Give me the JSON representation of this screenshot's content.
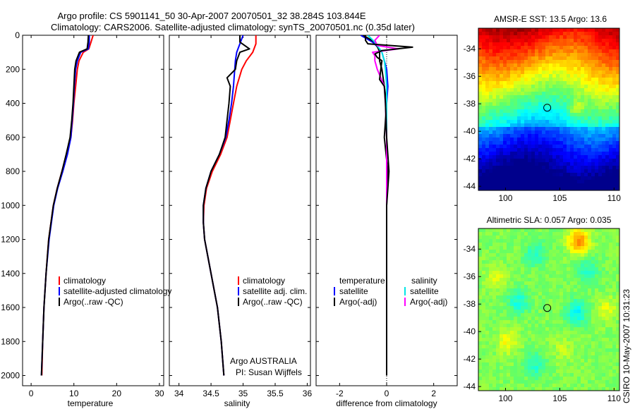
{
  "figure": {
    "title_line1": "Argo profile: CS 5901141_50 30-Apr-2007 20070501_32 38.284S 103.844E",
    "title_line2": "Climatology: CARS2006. Satellite-adjusted climatology: synTS_20070501.nc (0.35d later)",
    "side_text": "CSIRO 10-May-2007 10:31:23",
    "colors": {
      "climatology": "#ff0000",
      "satellite": "#0000ff",
      "argo": "#000000",
      "sal_satellite": "#00e5e5",
      "sal_argo": "#ff00ff"
    }
  },
  "chart_data": [
    {
      "type": "line",
      "xlabel": "temperature",
      "xlim": [
        -2,
        31
      ],
      "ylim": [
        2060,
        0
      ],
      "x_ticks": [
        0,
        10,
        20,
        30
      ],
      "y_ticks": [
        0,
        200,
        400,
        600,
        800,
        1000,
        1200,
        1400,
        1600,
        1800,
        2000
      ],
      "y_tick_labels": [
        "0",
        "200",
        "400",
        "600",
        "800",
        "1000",
        "1200",
        "1400",
        "1600",
        "1800",
        "2000"
      ],
      "legend": [
        "climatology",
        "satellite-adjusted climatology",
        "Argo(..raw -QC)"
      ],
      "series": [
        {
          "name": "climatology",
          "color": "#ff0000",
          "y": [
            0,
            40,
            80,
            100,
            150,
            200,
            300,
            400,
            500,
            600,
            700,
            800,
            900,
            1000,
            1200,
            1400,
            1600,
            1800,
            2000
          ],
          "x": [
            14.5,
            14.0,
            13.5,
            12.2,
            11.2,
            10.8,
            10.4,
            10.0,
            9.7,
            9.3,
            8.3,
            7.2,
            6.1,
            5.2,
            4.1,
            3.5,
            3.0,
            2.7,
            2.5
          ]
        },
        {
          "name": "satellite-adjusted climatology",
          "color": "#0000ff",
          "y": [
            0,
            40,
            80,
            100,
            150,
            200,
            300,
            400,
            500,
            600,
            700,
            800,
            900,
            1000,
            1200,
            1400,
            1600,
            1800,
            2000
          ],
          "x": [
            13.6,
            13.6,
            13.4,
            11.6,
            10.8,
            10.4,
            10.1,
            9.9,
            9.6,
            9.3,
            8.5,
            7.4,
            6.2,
            5.3,
            4.2,
            3.5,
            3.0,
            2.7,
            2.4
          ]
        },
        {
          "name": "Argo(..raw -QC)",
          "color": "#000000",
          "y": [
            0,
            40,
            80,
            100,
            150,
            200,
            300,
            400,
            500,
            600,
            700,
            800,
            900,
            1000,
            1200,
            1400,
            1600,
            1800,
            2000
          ],
          "x": [
            13.4,
            13.3,
            13.1,
            11.3,
            10.5,
            10.2,
            10.0,
            9.8,
            9.5,
            9.1,
            8.2,
            7.2,
            6.1,
            5.2,
            4.1,
            3.5,
            3.0,
            2.7,
            2.4
          ]
        }
      ]
    },
    {
      "type": "line",
      "xlabel": "salinity",
      "xlim": [
        33.85,
        36.05
      ],
      "ylim": [
        2060,
        0
      ],
      "x_ticks": [
        34,
        34.5,
        35,
        35.5,
        36
      ],
      "y_ticks": [
        0,
        200,
        400,
        600,
        800,
        1000,
        1200,
        1400,
        1600,
        1800,
        2000
      ],
      "legend": [
        "climatology",
        "satellite adj. clim.",
        "Argo(..raw -QC)"
      ],
      "annotation": [
        "Argo AUSTRALIA",
        "PI: Susan Wijffels"
      ],
      "series": [
        {
          "name": "climatology",
          "color": "#ff0000",
          "y": [
            0,
            50,
            100,
            150,
            200,
            300,
            400,
            500,
            600,
            700,
            800,
            900,
            1000,
            1100,
            1200,
            1400,
            1600,
            1800,
            2000
          ],
          "x": [
            35.2,
            35.2,
            35.15,
            35.05,
            34.98,
            34.9,
            34.85,
            34.8,
            34.75,
            34.65,
            34.52,
            34.43,
            34.39,
            34.38,
            34.4,
            34.5,
            34.6,
            34.66,
            34.7
          ]
        },
        {
          "name": "satellite adj. clim.",
          "color": "#0000ff",
          "y": [
            0,
            50,
            100,
            150,
            200,
            300,
            400,
            500,
            600,
            700,
            800,
            900,
            1000,
            1100,
            1200,
            1400,
            1600,
            1800,
            2000
          ],
          "x": [
            35.0,
            34.95,
            34.9,
            34.88,
            34.87,
            34.85,
            34.82,
            34.78,
            34.73,
            34.63,
            34.5,
            34.42,
            34.38,
            34.38,
            34.4,
            34.5,
            34.6,
            34.66,
            34.7
          ]
        },
        {
          "name": "Argo(..raw -QC)",
          "color": "#000000",
          "y": [
            0,
            40,
            80,
            100,
            150,
            200,
            250,
            300,
            400,
            500,
            600,
            700,
            800,
            900,
            1000,
            1100,
            1200,
            1400,
            1600,
            1800,
            2000
          ],
          "x": [
            34.95,
            34.95,
            35.1,
            34.95,
            34.9,
            34.88,
            34.75,
            34.8,
            34.78,
            34.75,
            34.72,
            34.63,
            34.5,
            34.42,
            34.38,
            34.38,
            34.4,
            34.5,
            34.6,
            34.66,
            34.7
          ]
        }
      ]
    },
    {
      "type": "line",
      "xlabel": "difference from climatology",
      "xlim": [
        -3,
        3
      ],
      "ylim": [
        2060,
        0
      ],
      "x_ticks": [
        -2,
        0,
        2
      ],
      "y_ticks": [
        0,
        200,
        400,
        600,
        800,
        1000,
        1200,
        1400,
        1600,
        1800,
        2000
      ],
      "legend_left_title": "temperature",
      "legend_right_title": "salinity",
      "legend_left": [
        "satellite",
        "Argo(-adj)"
      ],
      "legend_right": [
        "satellite",
        "Argo(-adj)"
      ],
      "series": [
        {
          "name": "temperature satellite",
          "color": "#0000ff",
          "y": [
            0,
            40,
            80,
            100,
            150,
            200,
            300,
            400,
            600,
            800,
            1000,
            1200,
            1600,
            2000
          ],
          "x": [
            -1.1,
            -0.6,
            -0.3,
            -0.2,
            -0.1,
            0.0,
            0.05,
            0.0,
            0.0,
            0.0,
            0.0,
            0.0,
            0.0,
            0.0
          ]
        },
        {
          "name": "temperature Argo(-adj)",
          "color": "#000000",
          "y": [
            0,
            40,
            80,
            100,
            150,
            200,
            300,
            400,
            600,
            800,
            1000,
            1200,
            1600,
            2000
          ],
          "x": [
            -1.0,
            -0.5,
            -0.35,
            -0.3,
            -0.3,
            -0.2,
            -0.1,
            0.0,
            -0.1,
            0.05,
            0.0,
            0.0,
            0.0,
            0.0
          ]
        },
        {
          "name": "salinity satellite",
          "color": "#00e5e5",
          "y": [
            0,
            40,
            80,
            100,
            150,
            200,
            300,
            400,
            600,
            800,
            1000,
            1200,
            1600,
            2000
          ],
          "x": [
            -0.8,
            -0.5,
            -0.3,
            -0.2,
            -0.1,
            -0.05,
            0.0,
            0.0,
            0.0,
            0.0,
            0.0,
            0.0,
            0.0,
            0.0
          ]
        },
        {
          "name": "salinity Argo(-adj)",
          "color": "#ff00ff",
          "y": [
            0,
            30,
            60,
            80,
            100,
            120,
            150,
            200,
            300,
            400,
            600,
            800,
            1000,
            1200,
            1600,
            2000
          ],
          "x": [
            -0.3,
            -0.5,
            -0.4,
            0.5,
            -0.6,
            -0.5,
            -0.5,
            -0.4,
            -0.1,
            -0.05,
            0.0,
            0.0,
            0.0,
            0.0,
            0.0,
            0.0
          ]
        },
        {
          "name": "Argo(-adj)",
          "color": "#000000",
          "y": [
            0,
            30,
            50,
            70,
            90,
            110,
            130,
            150,
            200,
            260,
            300,
            400,
            600,
            800,
            900,
            1000,
            1200,
            1600,
            2000
          ],
          "x": [
            -0.9,
            -0.9,
            -0.8,
            1.1,
            -0.2,
            -0.5,
            -0.4,
            -0.2,
            -0.25,
            -0.3,
            -0.1,
            -0.05,
            0.0,
            0.1,
            0.05,
            0.0,
            0.0,
            0.0,
            0.0
          ]
        }
      ]
    },
    {
      "type": "heatmap",
      "title": "AMSR-E SST: 13.5 Argo: 13.6",
      "xlim": [
        97.5,
        110.5
      ],
      "ylim": [
        -44.3,
        -32.5
      ],
      "x_ticks": [
        100,
        105,
        110
      ],
      "y_ticks": [
        -34,
        -36,
        -38,
        -40,
        -42,
        -44
      ],
      "marker": {
        "lon": 103.844,
        "lat": -38.284
      }
    },
    {
      "type": "heatmap",
      "title": "Altimetric SLA: 0.057 Argo: 0.035",
      "xlim": [
        97.5,
        110.5
      ],
      "ylim": [
        -44.3,
        -32.5
      ],
      "x_ticks": [
        100,
        105,
        110
      ],
      "y_ticks": [
        -34,
        -36,
        -38,
        -40,
        -42,
        -44
      ],
      "marker": {
        "lon": 103.844,
        "lat": -38.284
      }
    }
  ]
}
